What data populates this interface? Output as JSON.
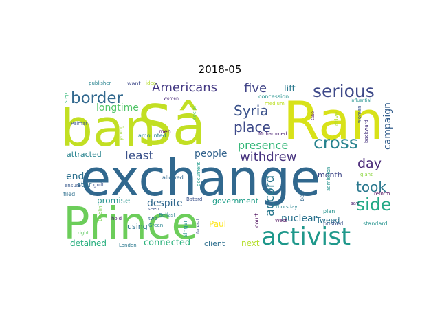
{
  "title": "2018-05",
  "words": [
    {
      "text": "ban",
      "color": "#c2df23"
    },
    {
      "text": "Sâ",
      "color": "#c2df23"
    },
    {
      "text": "Ran",
      "color": "#d8e219"
    },
    {
      "text": "exchange",
      "color": "#31688e"
    },
    {
      "text": "Prince",
      "color": "#6ccd5a"
    },
    {
      "text": "activist",
      "color": "#1f988b"
    },
    {
      "text": "border",
      "color": "#31688e"
    },
    {
      "text": "Americans",
      "color": "#443983"
    },
    {
      "text": "five",
      "color": "#414487"
    },
    {
      "text": "serious",
      "color": "#3e4989"
    },
    {
      "text": "Syria",
      "color": "#3b528b"
    },
    {
      "text": "place",
      "color": "#3e4a89"
    },
    {
      "text": "presence",
      "color": "#35b779"
    },
    {
      "text": "cross",
      "color": "#26828e"
    },
    {
      "text": "withdrew",
      "color": "#46327e"
    },
    {
      "text": "least",
      "color": "#3b528b"
    },
    {
      "text": "people",
      "color": "#33638d"
    },
    {
      "text": "side",
      "color": "#22a884"
    },
    {
      "text": "took",
      "color": "#2a788e"
    },
    {
      "text": "day",
      "color": "#482777"
    },
    {
      "text": "longtime",
      "color": "#52c569"
    },
    {
      "text": "lift",
      "color": "#2a788e"
    },
    {
      "text": "campaign",
      "color": "#355f8d"
    },
    {
      "text": "accord",
      "color": "#2a788e"
    },
    {
      "text": "nuclear",
      "color": "#2c728e"
    },
    {
      "text": "end",
      "color": "#2d708e"
    },
    {
      "text": "month",
      "color": "#3f4788"
    },
    {
      "text": "attracted",
      "color": "#26828e"
    },
    {
      "text": "star",
      "color": "#2e6e8e"
    },
    {
      "text": "promise",
      "color": "#21918c"
    },
    {
      "text": "despite",
      "color": "#31688e"
    },
    {
      "text": "government",
      "color": "#1f9e89"
    },
    {
      "text": "Tweed",
      "color": "#2c718e"
    },
    {
      "text": "connected",
      "color": "#2db27d"
    },
    {
      "text": "detained",
      "color": "#29af7f"
    },
    {
      "text": "using",
      "color": "#2c728e"
    },
    {
      "text": "Paul",
      "color": "#fde725"
    },
    {
      "text": "client",
      "color": "#2e6f8e"
    },
    {
      "text": "next",
      "color": "#b5de2b"
    },
    {
      "text": "publisher",
      "color": "#26828e"
    },
    {
      "text": "want",
      "color": "#3e4989"
    },
    {
      "text": "step",
      "color": "#35b779"
    },
    {
      "text": "Palmar",
      "color": "#3b528b"
    },
    {
      "text": "idea",
      "color": "#b5de2b"
    },
    {
      "text": "women",
      "color": "#482878"
    },
    {
      "text": "young",
      "color": "#a0da39"
    },
    {
      "text": "amounted",
      "color": "#26828e"
    },
    {
      "text": "men",
      "color": "#440154"
    },
    {
      "text": "social",
      "color": "#5ec962"
    },
    {
      "text": "medium",
      "color": "#bddf26"
    },
    {
      "text": "Mohammed",
      "color": "#481f70"
    },
    {
      "text": "concession",
      "color": "#21918c"
    },
    {
      "text": "take",
      "color": "#440154"
    },
    {
      "text": "drive",
      "color": "#b5de2b"
    },
    {
      "text": "influential",
      "color": "#21918c"
    },
    {
      "text": "woman",
      "color": "#3b528b"
    },
    {
      "text": "backward",
      "color": "#46327e"
    },
    {
      "text": "ensure",
      "color": "#38598c"
    },
    {
      "text": "filed",
      "color": "#2e6f8e"
    },
    {
      "text": "guilt",
      "color": "#3b528b"
    },
    {
      "text": "allowed",
      "color": "#31688e"
    },
    {
      "text": "Belfast",
      "color": "#26828e"
    },
    {
      "text": "document",
      "color": "#1f9a8a"
    },
    {
      "text": "ban",
      "color": "#31688e"
    },
    {
      "text": "admission",
      "color": "#21918c"
    },
    {
      "text": "giant",
      "color": "#8fd744"
    },
    {
      "text": "reform",
      "color": "#440154"
    },
    {
      "text": "say",
      "color": "#481a6c"
    },
    {
      "text": "Batard",
      "color": "#3b528b"
    },
    {
      "text": "court",
      "color": "#440154"
    },
    {
      "text": "Thursday",
      "color": "#26828e"
    },
    {
      "text": "West",
      "color": "#440154"
    },
    {
      "text": "pushed",
      "color": "#3b528b"
    },
    {
      "text": "standard",
      "color": "#21918c"
    },
    {
      "text": "plan",
      "color": "#21918c"
    },
    {
      "text": "seen",
      "color": "#3b528b"
    },
    {
      "text": "two",
      "color": "#31688e"
    },
    {
      "text": "hold",
      "color": "#481a6c"
    },
    {
      "text": "Green",
      "color": "#26828e"
    },
    {
      "text": "right",
      "color": "#5ec962"
    },
    {
      "text": "London",
      "color": "#2a788e"
    },
    {
      "text": "Dublin",
      "color": "#7ad151"
    },
    {
      "text": "singer",
      "color": "#21918c"
    },
    {
      "text": "federal",
      "color": "#3b528b"
    },
    {
      "text": "arresting",
      "color": "#26828e"
    }
  ]
}
